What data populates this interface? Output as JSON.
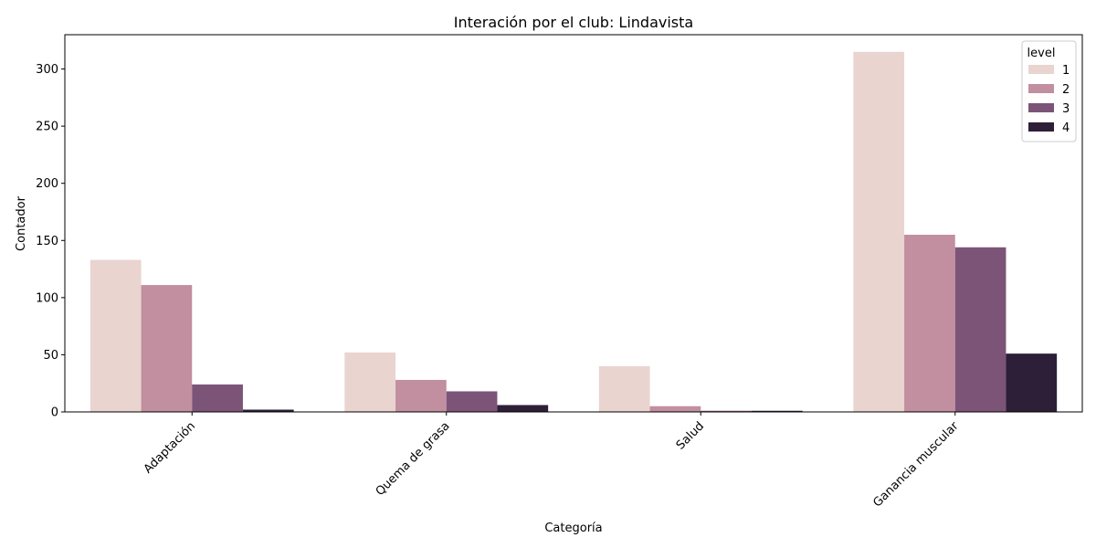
{
  "chart_data": {
    "type": "bar",
    "title": "Interación por el club: Lindavista",
    "xlabel": "Categoría",
    "ylabel": "Contador",
    "categories": [
      "Adaptación",
      "Quema de grasa",
      "Salud",
      "Ganancia muscular"
    ],
    "series": [
      {
        "name": "1",
        "values": [
          133,
          52,
          40,
          315
        ],
        "color": "#e9d4d0"
      },
      {
        "name": "2",
        "values": [
          111,
          28,
          5,
          155
        ],
        "color": "#c18f9f"
      },
      {
        "name": "3",
        "values": [
          24,
          18,
          1,
          144
        ],
        "color": "#7c5478"
      },
      {
        "name": "4",
        "values": [
          2,
          6,
          1,
          51
        ],
        "color": "#2e1f38"
      }
    ],
    "ylim": [
      0,
      330
    ],
    "yticks": [
      0,
      50,
      100,
      150,
      200,
      250,
      300
    ],
    "legend": {
      "title": "level",
      "placement": "top-right"
    },
    "grid": false
  }
}
